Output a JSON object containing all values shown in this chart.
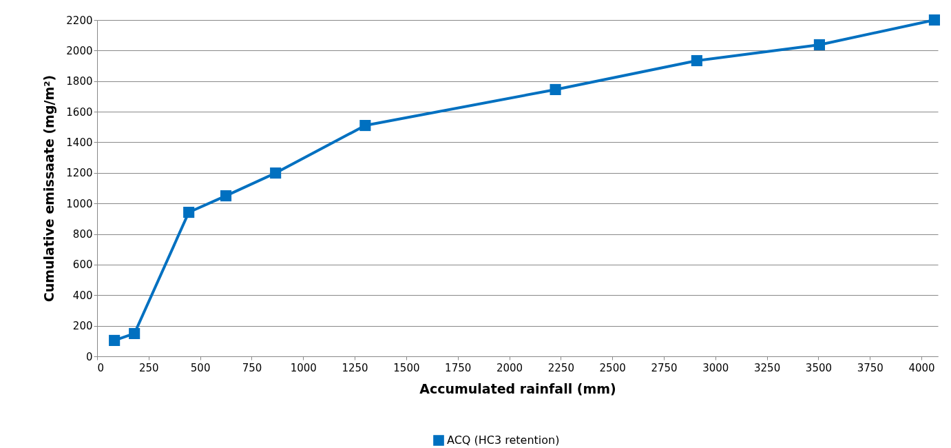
{
  "chart_data": {
    "type": "line",
    "xlabel": "Accumulated rainfall (mm)",
    "ylabel": "Cumulative emissaate (mg/m²)",
    "x": [
      84,
      181,
      445,
      625,
      866,
      1301,
      2224,
      2910,
      3505,
      4063
    ],
    "series": [
      {
        "name": "ACQ (HC3 retention)",
        "color": "#0070c0",
        "values": [
          104,
          149,
          942,
          1050,
          1199,
          1510,
          1745,
          1934,
          2038,
          2200
        ]
      }
    ],
    "xlim": [
      0,
      4080
    ],
    "xticks": [
      0,
      250,
      500,
      750,
      1000,
      1250,
      1500,
      1750,
      2000,
      2250,
      2500,
      2750,
      3000,
      3250,
      3500,
      3750,
      4000
    ],
    "ylim": [
      0,
      2200
    ],
    "yticks": [
      0,
      200,
      400,
      600,
      800,
      1000,
      1200,
      1400,
      1600,
      1800,
      2000,
      2200
    ],
    "grid": "y",
    "legend": "bottom",
    "marker": "square",
    "line_style": "solid"
  }
}
